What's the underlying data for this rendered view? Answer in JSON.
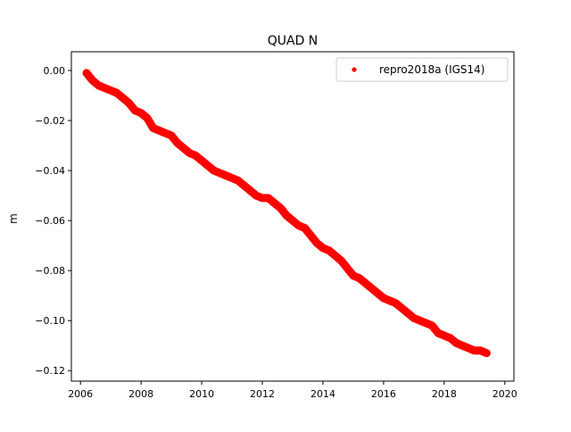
{
  "chart_data": {
    "type": "scatter",
    "title": "QUAD N",
    "xlabel": "",
    "ylabel": "m",
    "xlim": [
      2005.7,
      2020.3
    ],
    "ylim": [
      -0.1242,
      0.0075
    ],
    "x_ticks": [
      2006,
      2008,
      2010,
      2012,
      2014,
      2016,
      2018,
      2020
    ],
    "y_ticks": [
      0.0,
      -0.02,
      -0.04,
      -0.06,
      -0.08,
      -0.1,
      -0.12
    ],
    "x_tick_labels": [
      "2006",
      "2008",
      "2010",
      "2012",
      "2014",
      "2016",
      "2018",
      "2020"
    ],
    "y_tick_labels": [
      "0.00",
      "−0.02",
      "−0.04",
      "−0.06",
      "−0.08",
      "−0.10",
      "−0.12"
    ],
    "grid": false,
    "legend_position": "top-right",
    "series": [
      {
        "name": "repro2018a (IGS14)",
        "color": "#ff0000",
        "marker": "dot",
        "x": [
          2006.2,
          2006.4,
          2006.6,
          2006.8,
          2007.0,
          2007.2,
          2007.4,
          2007.6,
          2007.8,
          2008.0,
          2008.2,
          2008.4,
          2008.6,
          2008.8,
          2009.0,
          2009.2,
          2009.4,
          2009.6,
          2009.8,
          2010.0,
          2010.2,
          2010.4,
          2010.6,
          2010.8,
          2011.0,
          2011.2,
          2011.4,
          2011.6,
          2011.8,
          2012.0,
          2012.2,
          2012.4,
          2012.6,
          2012.8,
          2013.0,
          2013.2,
          2013.4,
          2013.6,
          2013.8,
          2014.0,
          2014.2,
          2014.4,
          2014.6,
          2014.8,
          2015.0,
          2015.2,
          2015.4,
          2015.6,
          2015.8,
          2016.0,
          2016.2,
          2016.4,
          2016.6,
          2016.8,
          2017.0,
          2017.2,
          2017.4,
          2017.6,
          2017.8,
          2018.0,
          2018.2,
          2018.4,
          2018.6,
          2018.8,
          2019.0,
          2019.2,
          2019.4
        ],
        "y": [
          -0.001,
          -0.004,
          -0.006,
          -0.007,
          -0.008,
          -0.009,
          -0.011,
          -0.013,
          -0.016,
          -0.017,
          -0.019,
          -0.023,
          -0.024,
          -0.025,
          -0.026,
          -0.029,
          -0.031,
          -0.033,
          -0.034,
          -0.036,
          -0.038,
          -0.04,
          -0.041,
          -0.042,
          -0.043,
          -0.044,
          -0.046,
          -0.048,
          -0.05,
          -0.051,
          -0.051,
          -0.053,
          -0.055,
          -0.058,
          -0.06,
          -0.062,
          -0.063,
          -0.066,
          -0.069,
          -0.071,
          -0.072,
          -0.074,
          -0.076,
          -0.079,
          -0.082,
          -0.083,
          -0.085,
          -0.087,
          -0.089,
          -0.091,
          -0.092,
          -0.093,
          -0.095,
          -0.097,
          -0.099,
          -0.1,
          -0.101,
          -0.102,
          -0.105,
          -0.106,
          -0.107,
          -0.109,
          -0.11,
          -0.111,
          -0.112,
          -0.112,
          -0.113
        ]
      }
    ]
  }
}
